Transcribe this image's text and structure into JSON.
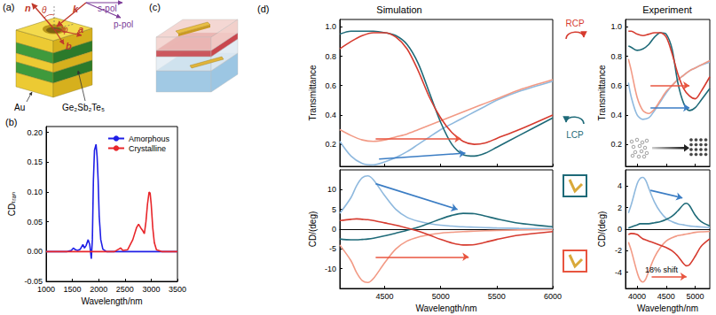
{
  "panel_labels": [
    "(a)",
    "(b)",
    "(c)",
    "(d)"
  ],
  "column_titles": [
    "Simulation",
    "Experiment"
  ],
  "polarization_labels": [
    "RCP",
    "LCP"
  ],
  "diagram_a": {
    "normal": "n",
    "theta": "θ",
    "wavevector": "k",
    "a": "a",
    "phi": "φ",
    "b": "b",
    "s_pol": "s-pol",
    "p_pol": "p-pol",
    "metal": "Au",
    "phase_change": "Ge₂Sb₂Te₅"
  },
  "chart_data": [
    {
      "type": "line",
      "x_label": "Wavelength/nm",
      "y_label": "CDₜᵣₐₙ",
      "xlim": [
        1000,
        3500
      ],
      "xticks": [
        1000,
        1500,
        2000,
        2500,
        3000,
        3500
      ],
      "ylim": [
        -0.05,
        0.21
      ],
      "yticks": [
        -0.05,
        {
          "value": 0,
          "label": "0.00"
        },
        0.05,
        {
          "value": 0.1,
          "label": "0.10"
        },
        0.15,
        {
          "value": 0.2,
          "label": "0.20"
        }
      ],
      "grid": false,
      "legend": "upper right",
      "series": [
        {
          "name": "Amorphous",
          "color": "#1f1fe6",
          "x": [
            1000,
            1400,
            1480,
            1520,
            1560,
            1600,
            1650,
            1700,
            1730,
            1760,
            1800,
            1830,
            1860,
            1880,
            1900,
            1920,
            1950,
            1970,
            1990,
            2010,
            2040,
            2080,
            2150,
            2500,
            3000,
            3500
          ],
          "values": [
            0,
            0,
            0.002,
            0.006,
            0.003,
            0.002,
            0.004,
            0.012,
            0.006,
            0.01,
            0.02,
            0.012,
            -0.012,
            0.02,
            0.12,
            0.17,
            0.18,
            0.16,
            0.12,
            0.06,
            0.02,
            0.004,
            0,
            0,
            0,
            0
          ]
        },
        {
          "name": "Crystalline",
          "color": "#e8262a",
          "x": [
            1000,
            2000,
            2300,
            2380,
            2420,
            2460,
            2550,
            2650,
            2720,
            2760,
            2800,
            2840,
            2870,
            2900,
            2930,
            2960,
            2980,
            3000,
            3030,
            3060,
            3100,
            3200,
            3500
          ],
          "values": [
            0,
            0,
            0,
            0.004,
            0.006,
            0.002,
            0.003,
            0.02,
            0.04,
            0.046,
            0.04,
            0.035,
            0.03,
            0.05,
            0.08,
            0.1,
            0.098,
            0.08,
            0.04,
            0.015,
            0.003,
            0,
            0
          ]
        }
      ]
    },
    {
      "type": "line",
      "y_label": "Transmittance",
      "xlim": [
        4100,
        6000
      ],
      "xticks": [
        4500,
        5000,
        5500,
        6000
      ],
      "ylim": [
        0.05,
        1.05
      ],
      "yticks": [
        0.2,
        0.4,
        0.6,
        0.8,
        {
          "value": 1,
          "label": "1.0"
        }
      ],
      "grid": false,
      "tick_labels": "y",
      "series": [
        {
          "color": "#8fb9de",
          "x": [
            4100,
            4200,
            4300,
            4400,
            4500,
            4600,
            4700,
            4800,
            4900,
            5000,
            5100,
            5200,
            5300,
            5400,
            5500,
            5700,
            6000
          ],
          "values": [
            0.22,
            0.12,
            0.07,
            0.06,
            0.08,
            0.11,
            0.15,
            0.2,
            0.25,
            0.3,
            0.34,
            0.38,
            0.42,
            0.46,
            0.5,
            0.56,
            0.63
          ]
        },
        {
          "color": "#f29a85",
          "x": [
            4100,
            4200,
            4300,
            4400,
            4500,
            4600,
            4700,
            4800,
            4900,
            5000,
            5100,
            5200,
            5300,
            5400,
            5500,
            5700,
            6000
          ],
          "values": [
            0.3,
            0.26,
            0.23,
            0.22,
            0.23,
            0.25,
            0.27,
            0.3,
            0.33,
            0.36,
            0.39,
            0.42,
            0.45,
            0.48,
            0.51,
            0.57,
            0.64
          ]
        },
        {
          "color": "#1e6a78",
          "x": [
            4100,
            4200,
            4300,
            4400,
            4500,
            4600,
            4700,
            4800,
            4900,
            5000,
            5100,
            5200,
            5300,
            5400,
            5500,
            5700,
            6000
          ],
          "values": [
            0.95,
            0.97,
            0.97,
            0.97,
            0.96,
            0.94,
            0.88,
            0.75,
            0.55,
            0.35,
            0.2,
            0.13,
            0.12,
            0.14,
            0.18,
            0.26,
            0.38
          ]
        },
        {
          "color": "#d63b2f",
          "x": [
            4100,
            4200,
            4300,
            4400,
            4500,
            4600,
            4700,
            4800,
            4900,
            5000,
            5100,
            5200,
            5300,
            5400,
            5500,
            5700,
            6000
          ],
          "values": [
            0.85,
            0.9,
            0.94,
            0.96,
            0.96,
            0.93,
            0.85,
            0.7,
            0.52,
            0.38,
            0.28,
            0.22,
            0.2,
            0.21,
            0.24,
            0.3,
            0.4
          ]
        }
      ],
      "arrows": [
        {
          "from": [
            4420,
            0.24
          ],
          "to": [
            5180,
            0.24
          ],
          "color": "#e8553f"
        },
        {
          "from": [
            4450,
            0.1
          ],
          "to": [
            5220,
            0.14
          ],
          "color": "#3b7dc4"
        }
      ]
    },
    {
      "type": "line",
      "x_label": "Wavelength/nm",
      "y_label": "CD/(deg)",
      "xlim": [
        4100,
        6000
      ],
      "xticks": [
        4500,
        5000,
        5500,
        6000
      ],
      "ylim": [
        -15,
        15
      ],
      "yticks": [
        -10,
        -5,
        0,
        5,
        10
      ],
      "grid": false,
      "series": [
        {
          "color": "#8fb9de",
          "x": [
            4100,
            4200,
            4250,
            4300,
            4350,
            4400,
            4500,
            4600,
            4700,
            4800,
            4900,
            5000,
            5100,
            5200,
            5300,
            5400,
            5500,
            5700,
            6000
          ],
          "values": [
            4,
            8,
            11,
            13,
            13.5,
            12.5,
            8.5,
            5,
            3,
            2,
            1.4,
            1,
            0.8,
            0.6,
            0.5,
            0.4,
            0.3,
            0.2,
            0.1
          ]
        },
        {
          "color": "#f29a85",
          "x": [
            4100,
            4200,
            4250,
            4300,
            4350,
            4400,
            4500,
            4600,
            4700,
            4800,
            4900,
            5000,
            5100,
            5200,
            5300,
            5400,
            5500,
            5700,
            6000
          ],
          "values": [
            -4,
            -8,
            -11,
            -13,
            -13.5,
            -12.5,
            -8.5,
            -5,
            -3,
            -2,
            -1.4,
            -1,
            -0.8,
            -0.6,
            -0.5,
            -0.4,
            -0.3,
            -0.2,
            -0.1
          ]
        },
        {
          "color": "#1e6a78",
          "x": [
            4100,
            4200,
            4250,
            4300,
            4350,
            4400,
            4500,
            4600,
            4700,
            4800,
            4900,
            5000,
            5100,
            5200,
            5300,
            5400,
            5500,
            5700,
            6000
          ],
          "values": [
            -2.5,
            -2.7,
            -2.7,
            -2.6,
            -2.5,
            -2.3,
            -1.7,
            -1,
            -0.3,
            0.5,
            1.5,
            2.6,
            3.5,
            4,
            3.9,
            3.3,
            2.6,
            1.5,
            0.6
          ]
        },
        {
          "color": "#d63b2f",
          "x": [
            4100,
            4200,
            4250,
            4300,
            4350,
            4400,
            4500,
            4600,
            4700,
            4800,
            4900,
            5000,
            5100,
            5200,
            5300,
            5400,
            5500,
            5700,
            6000
          ],
          "values": [
            2.2,
            2.5,
            2.6,
            2.5,
            2.4,
            2.2,
            1.6,
            1,
            0.3,
            -0.5,
            -1.5,
            -2.6,
            -3.5,
            -4,
            -3.9,
            -3.3,
            -2.6,
            -1.5,
            -0.6
          ]
        }
      ],
      "arrows": [
        {
          "from": [
            4420,
            11.5
          ],
          "to": [
            5150,
            5
          ],
          "color": "#3b7dc4"
        },
        {
          "from": [
            4420,
            -7
          ],
          "to": [
            5250,
            -7
          ],
          "color": "#e8553f"
        }
      ]
    },
    {
      "type": "line",
      "y_label": "Transmittance",
      "xlim": [
        3800,
        5250
      ],
      "xticks": [
        4000,
        4500,
        5000
      ],
      "ylim": [
        0.05,
        1.05
      ],
      "yticks": [
        0.2,
        0.4,
        0.6,
        0.8,
        {
          "value": 1,
          "label": "1.0"
        }
      ],
      "grid": false,
      "tick_labels": "y",
      "series": [
        {
          "color": "#8fb9de",
          "x": [
            3850,
            3900,
            4000,
            4100,
            4200,
            4300,
            4400,
            4500,
            4600,
            4700,
            4800,
            4900,
            5000,
            5100,
            5250
          ],
          "values": [
            0.62,
            0.52,
            0.4,
            0.37,
            0.38,
            0.43,
            0.49,
            0.55,
            0.6,
            0.64,
            0.67,
            0.7,
            0.72,
            0.74,
            0.76
          ]
        },
        {
          "color": "#f29a85",
          "x": [
            3850,
            3900,
            4000,
            4100,
            4200,
            4300,
            4400,
            4500,
            4600,
            4700,
            4800,
            4900,
            5000,
            5100,
            5250
          ],
          "values": [
            0.78,
            0.7,
            0.52,
            0.43,
            0.41,
            0.44,
            0.5,
            0.56,
            0.6,
            0.64,
            0.67,
            0.7,
            0.72,
            0.74,
            0.77
          ]
        },
        {
          "color": "#1e6a78",
          "x": [
            3850,
            3900,
            4000,
            4100,
            4200,
            4300,
            4400,
            4500,
            4600,
            4700,
            4800,
            4900,
            5000,
            5100,
            5250
          ],
          "values": [
            0.87,
            0.86,
            0.84,
            0.85,
            0.88,
            0.93,
            0.96,
            0.95,
            0.85,
            0.62,
            0.48,
            0.43,
            0.45,
            0.5,
            0.58
          ]
        },
        {
          "color": "#d63b2f",
          "x": [
            3850,
            3900,
            4000,
            4100,
            4200,
            4300,
            4400,
            4500,
            4600,
            4700,
            4800,
            4900,
            5000,
            5100,
            5250
          ],
          "values": [
            0.97,
            0.97,
            0.95,
            0.94,
            0.95,
            0.96,
            0.96,
            0.93,
            0.82,
            0.68,
            0.58,
            0.53,
            0.51,
            0.56,
            0.66
          ]
        }
      ],
      "arrows": [
        {
          "from": [
            4230,
            0.6
          ],
          "to": [
            4900,
            0.6
          ],
          "color": "#e8553f"
        },
        {
          "from": [
            4230,
            0.45
          ],
          "to": [
            4900,
            0.45
          ],
          "color": "#3b7dc4"
        }
      ]
    },
    {
      "type": "line",
      "x_label": "Wavelength/nm",
      "y_label": "CD/(deg)",
      "xlim": [
        3800,
        5250
      ],
      "xticks": [
        4000,
        4500,
        5000
      ],
      "ylim": [
        -5.5,
        5.5
      ],
      "yticks": [
        -4,
        -2,
        0,
        2,
        4
      ],
      "grid": false,
      "annotations": [
        "18% shift"
      ],
      "series": [
        {
          "color": "#8fb9de",
          "x": [
            3850,
            3900,
            4000,
            4050,
            4100,
            4150,
            4200,
            4300,
            4400,
            4500,
            4600,
            4700,
            4800,
            4850,
            4900,
            5000,
            5100,
            5250
          ],
          "values": [
            1.5,
            2.3,
            4.2,
            4.7,
            4.8,
            4.5,
            3.8,
            2.5,
            1.6,
            1,
            0.7,
            0.5,
            0.4,
            0.35,
            0.3,
            0.25,
            0.2,
            0.15
          ]
        },
        {
          "color": "#f29a85",
          "x": [
            3850,
            3900,
            4000,
            4050,
            4100,
            4150,
            4200,
            4300,
            4400,
            4500,
            4600,
            4700,
            4800,
            4850,
            4900,
            5000,
            5100,
            5250
          ],
          "values": [
            -1.2,
            -2,
            -4,
            -4.7,
            -4.9,
            -4.6,
            -3.9,
            -2.6,
            -1.7,
            -1.1,
            -0.8,
            -0.6,
            -0.5,
            -0.45,
            -0.4,
            -0.3,
            -0.25,
            -0.2
          ]
        },
        {
          "color": "#1e6a78",
          "x": [
            3850,
            3900,
            4000,
            4050,
            4100,
            4150,
            4200,
            4300,
            4400,
            4500,
            4600,
            4700,
            4800,
            4850,
            4900,
            5000,
            5100,
            5250
          ],
          "values": [
            0.1,
            0.2,
            0.4,
            0.5,
            0.5,
            0.5,
            0.5,
            0.6,
            0.7,
            0.9,
            1.2,
            1.7,
            2.3,
            2.4,
            2.2,
            1.3,
            0.7,
            0.3
          ]
        },
        {
          "color": "#d63b2f",
          "x": [
            3850,
            3900,
            4000,
            4050,
            4100,
            4150,
            4200,
            4300,
            4400,
            4500,
            4600,
            4700,
            4800,
            4850,
            4900,
            5000,
            5100,
            5250
          ],
          "values": [
            -0.5,
            -0.4,
            -0.5,
            -0.7,
            -0.9,
            -1,
            -1.1,
            -1.3,
            -1.5,
            -1.7,
            -2,
            -2.5,
            -3.2,
            -3.4,
            -3.3,
            -2.5,
            -1.6,
            -0.9
          ]
        }
      ],
      "arrows": [
        {
          "from": [
            4230,
            3.6
          ],
          "to": [
            4780,
            2.9
          ],
          "color": "#3b7dc4"
        },
        {
          "from": [
            4250,
            -4.4
          ],
          "to": [
            4850,
            -4.4
          ],
          "color": "#e8553f"
        }
      ]
    }
  ]
}
